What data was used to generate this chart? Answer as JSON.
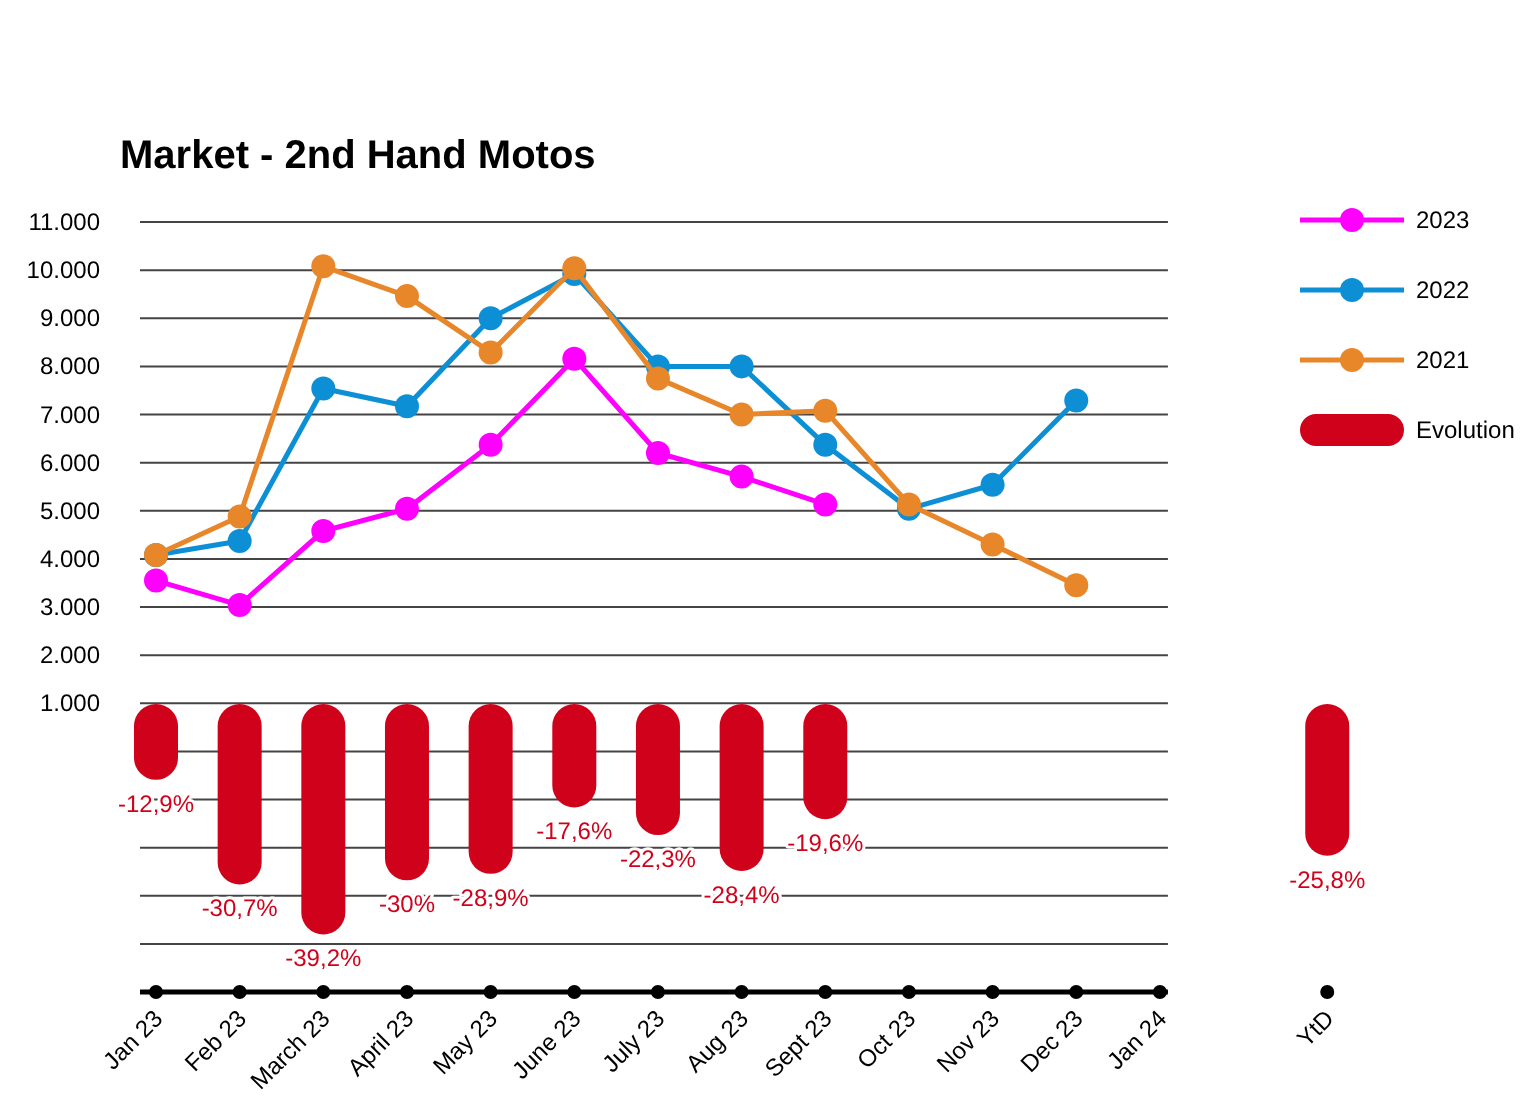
{
  "chart_data": {
    "type": "line",
    "title": "Market - 2nd Hand Motos",
    "categories": [
      "Jan 23",
      "Feb 23",
      "March 23",
      "April 23",
      "May 23",
      "June 23",
      "July 23",
      "Aug 23",
      "Sept 23",
      "Oct 23",
      "Nov 23",
      "Dec 23",
      "Jan 24",
      null,
      "YtD"
    ],
    "ylim": [
      -5000,
      11000
    ],
    "yticks": [
      {
        "value": -5000,
        "label": null
      },
      {
        "value": -4000,
        "label": null
      },
      {
        "value": -3000,
        "label": null
      },
      {
        "value": -2000,
        "label": null
      },
      {
        "value": -1000,
        "label": null
      },
      {
        "value": 0,
        "label": null
      },
      {
        "value": 1000,
        "label": "1.000"
      },
      {
        "value": 2000,
        "label": "2.000"
      },
      {
        "value": 3000,
        "label": "3.000"
      },
      {
        "value": 4000,
        "label": "4.000"
      },
      {
        "value": 5000,
        "label": "5.000"
      },
      {
        "value": 6000,
        "label": "6.000"
      },
      {
        "value": 7000,
        "label": "7.000"
      },
      {
        "value": 8000,
        "label": "8.000"
      },
      {
        "value": 9000,
        "label": "9.000"
      },
      {
        "value": 10000,
        "label": "10.000"
      },
      {
        "value": 11000,
        "label": "11.000"
      }
    ],
    "y2lim": [
      -49,
      82
    ],
    "grid": "y",
    "legend": "right",
    "marker": "circle",
    "series": [
      {
        "name": "2023",
        "color": "#ff00ff",
        "values": [
          3550,
          3040,
          4580,
          5040,
          6370,
          8160,
          6200,
          5710,
          5130,
          null,
          null,
          null,
          null,
          null,
          null
        ]
      },
      {
        "name": "2022",
        "color": "#0d8fd6",
        "values": [
          4080,
          4370,
          7540,
          7170,
          9000,
          9920,
          8000,
          8000,
          6370,
          5040,
          5540,
          7290,
          null,
          null,
          null
        ]
      },
      {
        "name": "2021",
        "color": "#e8862a",
        "values": [
          4080,
          4880,
          10080,
          9460,
          8290,
          10040,
          7750,
          7000,
          7080,
          5130,
          4300,
          3450,
          null,
          null,
          null
        ]
      },
      {
        "name": "Evolution",
        "type": "bar",
        "axis": "y2",
        "color": "#d0021b",
        "values": [
          -12.9,
          -30.7,
          -39.2,
          -30,
          -28.9,
          -17.6,
          -22.3,
          -28.4,
          -19.6,
          null,
          null,
          null,
          null,
          null,
          -25.8
        ],
        "value_labels": [
          "-12,9%",
          "-30,7%",
          "-39,2%",
          "-30%",
          "-28,9%",
          "-17,6%",
          "-22,3%",
          "-28,4%",
          "-19,6%",
          null,
          null,
          null,
          null,
          null,
          "-25,8%"
        ]
      }
    ]
  }
}
